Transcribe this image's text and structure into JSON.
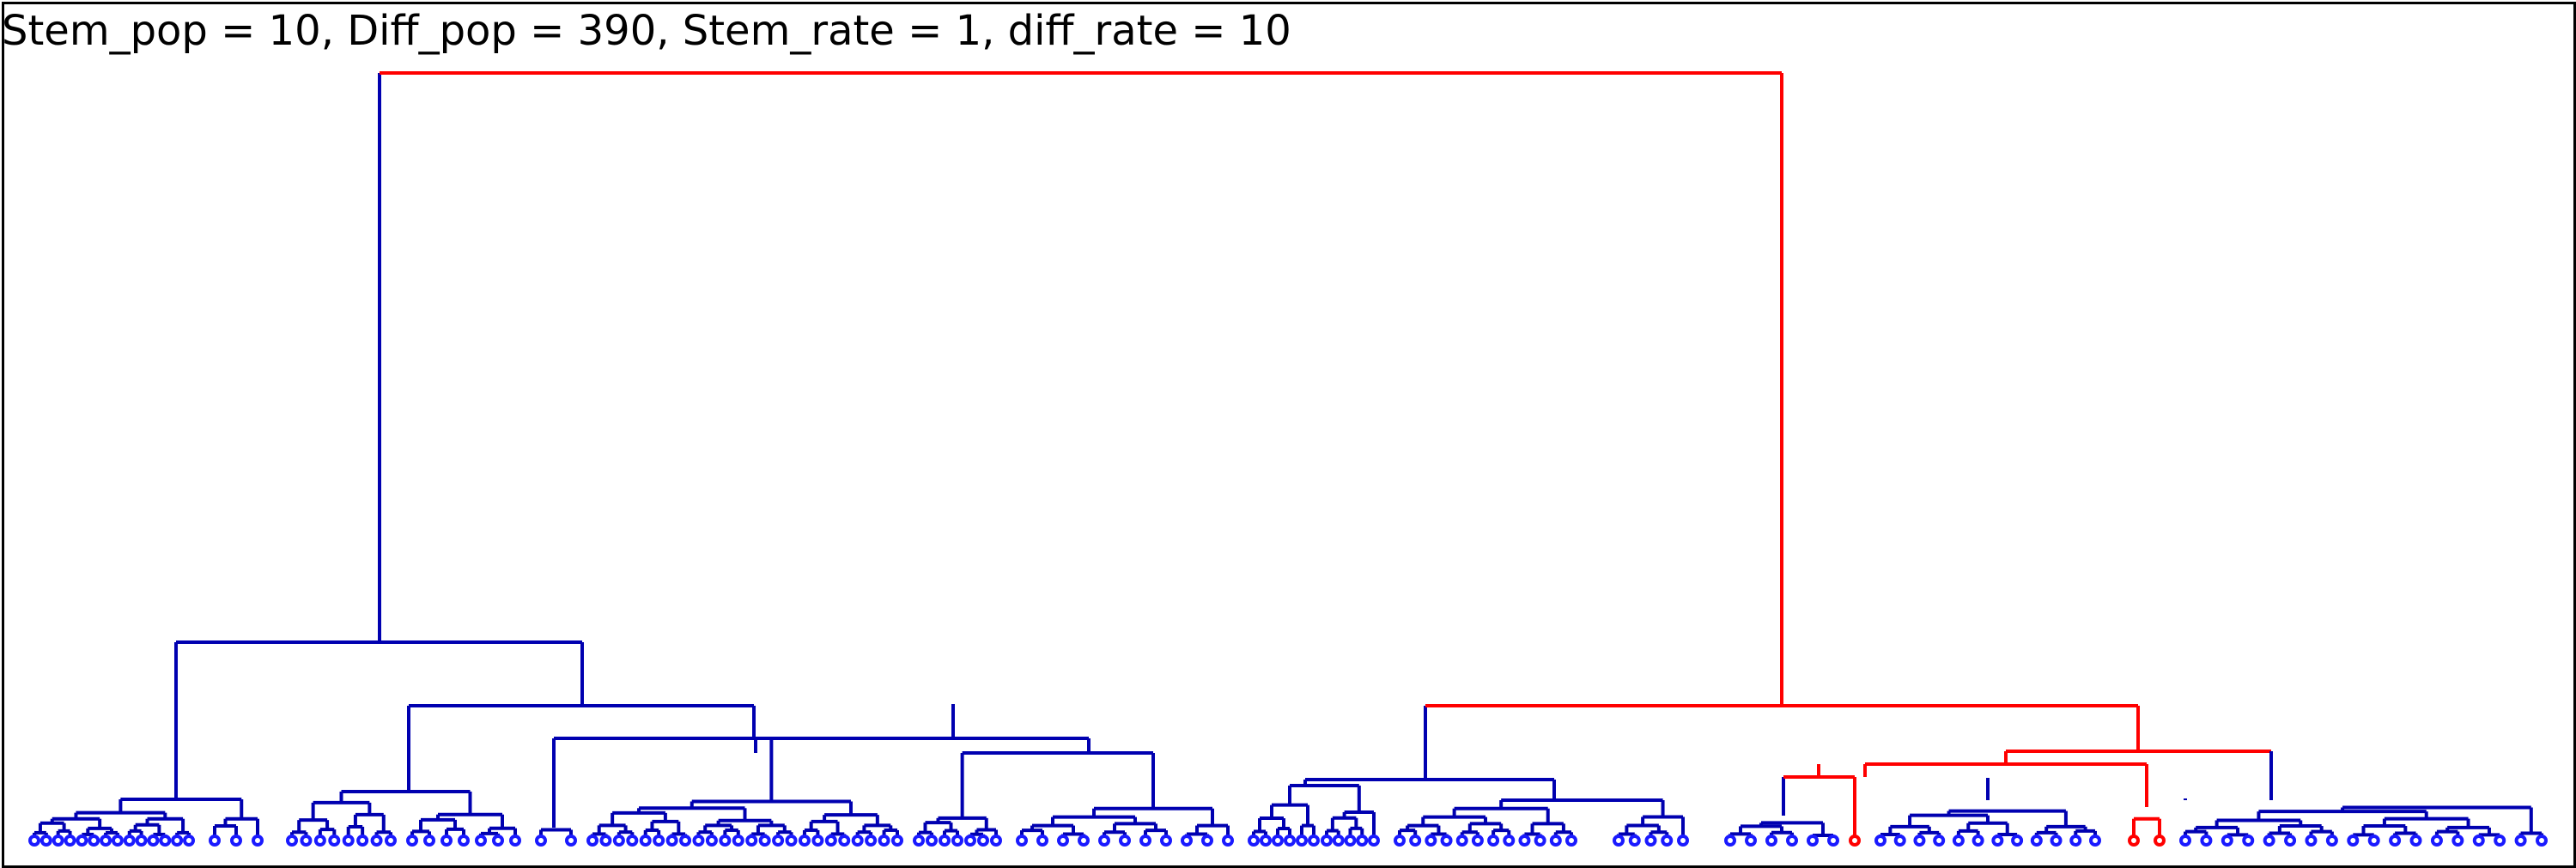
{
  "title": "Stem_pop = 10, Diff_pop = 390, Stem_rate = 1, diff_rate = 10",
  "colors": {
    "stem": "#ff0000",
    "diff": "#0000b0",
    "leaf": "#1a1aff",
    "frame": "#000000"
  },
  "tree_structure": {
    "root": "stem",
    "children": [
      {
        "lineage": "differentiated",
        "subclades": 2
      },
      {
        "lineage": "stem",
        "subclades": 2
      }
    ]
  }
}
